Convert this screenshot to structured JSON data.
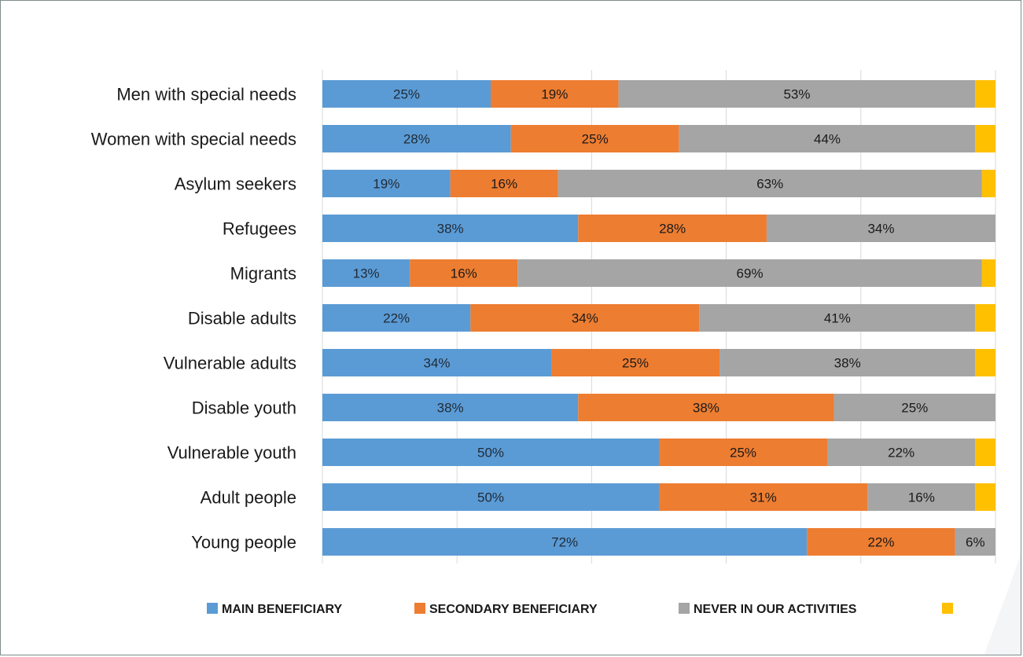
{
  "chart_data": {
    "type": "bar",
    "orientation": "horizontal",
    "stacked": true,
    "percent_stacked": true,
    "title": "",
    "xlabel": "",
    "ylabel": "",
    "xlim": [
      0,
      100
    ],
    "grid": true,
    "legend_position": "bottom",
    "categories": [
      "Men with special needs",
      "Women with special needs",
      "Asylum seekers",
      "Refugees",
      "Migrants",
      "Disable adults",
      "Vulnerable adults",
      "Disable youth",
      "Vulnerable youth",
      "Adult people",
      "Young people"
    ],
    "series": [
      {
        "name": "MAIN BENEFICIARY",
        "color": "#5b9bd5",
        "values": [
          25,
          28,
          19,
          38,
          13,
          22,
          34,
          38,
          50,
          50,
          72
        ],
        "labels": [
          "25%",
          "28%",
          "19%",
          "38%",
          "13%",
          "22%",
          "34%",
          "38%",
          "50%",
          "50%",
          "72%"
        ]
      },
      {
        "name": "SECONDARY BENEFICIARY",
        "color": "#ed7d31",
        "values": [
          19,
          25,
          16,
          28,
          16,
          34,
          25,
          38,
          25,
          31,
          22
        ],
        "labels": [
          "19%",
          "25%",
          "16%",
          "28%",
          "16%",
          "34%",
          "25%",
          "38%",
          "25%",
          "31%",
          "22%"
        ]
      },
      {
        "name": "NEVER IN OUR ACTIVITIES",
        "color": "#a5a5a5",
        "values": [
          53,
          44,
          63,
          34,
          69,
          41,
          38,
          25,
          22,
          16,
          6
        ],
        "labels": [
          "53%",
          "44%",
          "63%",
          "34%",
          "69%",
          "41%",
          "38%",
          "25%",
          "22%",
          "16%",
          "6%"
        ]
      },
      {
        "color": "#ffc000",
        "values": [
          3,
          3,
          3,
          0,
          3,
          3,
          3,
          0,
          3,
          3,
          0
        ],
        "labels": [
          "",
          "",
          "",
          "",
          "",
          "",
          "",
          "",
          "",
          "",
          ""
        ]
      }
    ]
  }
}
